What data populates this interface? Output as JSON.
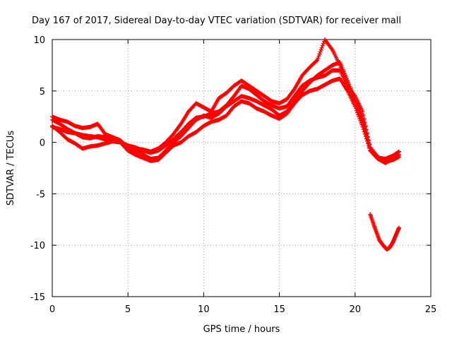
{
  "chart_data": {
    "type": "scatter",
    "title": "Day 167 of 2017, Sidereal Day-to-day VTEC variation (SDTVAR) for receiver mall",
    "xlabel": "GPS time / hours",
    "ylabel": "SDTVAR / TECUs",
    "xlim": [
      0,
      25
    ],
    "ylim": [
      -15,
      10
    ],
    "xticks": [
      0,
      5,
      10,
      15,
      20,
      25
    ],
    "yticks": [
      -15,
      -10,
      -5,
      0,
      5,
      10
    ],
    "grid": true,
    "marker": "+",
    "color": "#ff0000",
    "series": [
      {
        "name": "track-1",
        "x": [
          0.0,
          0.5,
          1.0,
          1.5,
          2.0,
          2.5,
          3.0,
          3.5,
          4.0,
          4.5,
          5.0,
          5.5,
          6.0,
          6.5,
          7.0,
          7.5,
          8.0,
          8.5,
          9.0,
          9.5,
          10.0,
          10.5,
          11.0,
          11.5,
          12.0,
          12.5,
          13.0,
          13.5,
          14.0,
          14.5,
          15.0,
          15.5,
          16.0,
          16.5,
          17.0,
          17.5,
          18.0,
          18.5,
          19.0,
          19.5,
          20.0,
          20.5,
          21.0,
          21.5,
          22.0,
          22.5,
          22.9
        ],
        "y": [
          1.5,
          1.3,
          1.0,
          0.9,
          0.7,
          0.6,
          0.5,
          0.3,
          0.2,
          0.0,
          -0.3,
          -0.5,
          -0.8,
          -1.0,
          -0.8,
          -0.3,
          0.3,
          1.0,
          1.8,
          2.4,
          2.5,
          2.8,
          3.0,
          3.6,
          4.5,
          5.5,
          5.2,
          4.6,
          4.0,
          3.6,
          3.3,
          3.5,
          4.5,
          5.5,
          6.0,
          6.3,
          6.5,
          7.0,
          7.0,
          5.5,
          4.0,
          2.0,
          -0.5,
          -1.5,
          -1.8,
          -1.5,
          -1.2
        ]
      },
      {
        "name": "track-2",
        "x": [
          0.0,
          0.5,
          1.0,
          1.5,
          2.0,
          2.5,
          3.0,
          3.5,
          4.0,
          4.5,
          5.0,
          5.5,
          6.0,
          6.5,
          7.0,
          7.5,
          8.0,
          8.5,
          9.0,
          9.5,
          10.0,
          10.5,
          11.0,
          11.5,
          12.0,
          12.5,
          13.0,
          13.5,
          14.0,
          14.5,
          15.0,
          15.5,
          16.0,
          16.5,
          17.0,
          17.5,
          18.0,
          18.5,
          19.0,
          19.5,
          20.0,
          20.5,
          21.0,
          21.5,
          22.0,
          22.5,
          22.9
        ],
        "y": [
          2.2,
          1.8,
          1.3,
          0.9,
          0.5,
          0.4,
          0.6,
          0.5,
          0.3,
          0.1,
          -0.4,
          -0.8,
          -1.2,
          -1.6,
          -1.5,
          -0.8,
          0.0,
          0.6,
          1.4,
          2.2,
          2.6,
          2.4,
          2.8,
          3.5,
          4.0,
          4.5,
          4.3,
          4.0,
          3.6,
          3.2,
          2.6,
          3.0,
          4.0,
          5.0,
          5.8,
          6.5,
          7.0,
          7.5,
          7.8,
          6.0,
          4.2,
          2.5,
          -0.8,
          -1.6,
          -2.0,
          -1.6,
          -1.2
        ]
      },
      {
        "name": "track-3",
        "x": [
          0.0,
          0.5,
          1.0,
          1.5,
          2.0,
          2.5,
          3.0,
          3.5,
          4.0,
          4.5,
          5.0,
          5.5,
          6.0,
          6.5,
          7.0,
          7.5,
          8.0,
          8.5,
          9.0,
          9.5,
          10.0,
          10.5,
          11.0,
          11.5,
          12.0,
          12.5,
          13.0,
          13.5,
          14.0,
          14.5,
          15.0,
          15.5,
          16.0,
          16.5,
          17.0,
          17.5,
          18.0,
          18.5,
          19.0,
          19.5,
          20.0,
          20.5,
          21.0,
          21.5,
          22.0,
          22.5,
          22.9
        ],
        "y": [
          1.6,
          1.0,
          0.3,
          -0.1,
          -0.6,
          -0.4,
          -0.3,
          -0.1,
          0.1,
          0.0,
          -0.8,
          -1.2,
          -1.5,
          -1.8,
          -1.7,
          -1.0,
          -0.3,
          0.0,
          0.6,
          1.0,
          1.6,
          2.0,
          2.2,
          2.6,
          3.5,
          4.0,
          3.8,
          3.3,
          3.0,
          2.6,
          2.3,
          2.8,
          3.8,
          4.6,
          5.0,
          5.2,
          5.6,
          6.0,
          6.2,
          5.0,
          3.5,
          1.5,
          -0.8,
          -1.5,
          -1.6,
          -1.3,
          -0.9
        ]
      },
      {
        "name": "track-4",
        "x": [
          0.0,
          0.5,
          1.0,
          1.5,
          2.0,
          2.5,
          3.0,
          3.5,
          4.0,
          4.5,
          5.0,
          5.5,
          6.0,
          6.5,
          7.0,
          7.5,
          8.0,
          8.5,
          9.0,
          9.5,
          10.0,
          10.5,
          11.0,
          11.5,
          12.0,
          12.5,
          13.0,
          13.5,
          14.0,
          14.5,
          15.0,
          15.5,
          16.0,
          16.5,
          17.0,
          17.5,
          18.0,
          18.5,
          19.0,
          19.5,
          20.0,
          20.5,
          21.0,
          21.5,
          22.0,
          22.5,
          22.9
        ],
        "y": [
          2.5,
          2.2,
          2.0,
          1.6,
          1.4,
          1.5,
          1.8,
          0.8,
          0.5,
          0.2,
          -0.5,
          -0.6,
          -0.7,
          -0.9,
          -0.6,
          0.0,
          0.8,
          1.8,
          3.0,
          3.8,
          3.4,
          3.0,
          4.3,
          4.8,
          5.5,
          6.0,
          5.5,
          5.0,
          4.5,
          4.0,
          3.8,
          4.2,
          5.2,
          6.5,
          7.3,
          8.0,
          10.0,
          9.0,
          7.5,
          5.5,
          4.5,
          3.0,
          -0.5,
          -1.4,
          -1.9,
          -1.7,
          -1.4
        ]
      },
      {
        "name": "dip-segment",
        "x": [
          21.0,
          21.3,
          21.6,
          21.9,
          22.1,
          22.3,
          22.5,
          22.7,
          22.9
        ],
        "y": [
          -7.0,
          -8.3,
          -9.5,
          -10.1,
          -10.4,
          -10.2,
          -9.7,
          -9.0,
          -8.3
        ]
      }
    ]
  }
}
